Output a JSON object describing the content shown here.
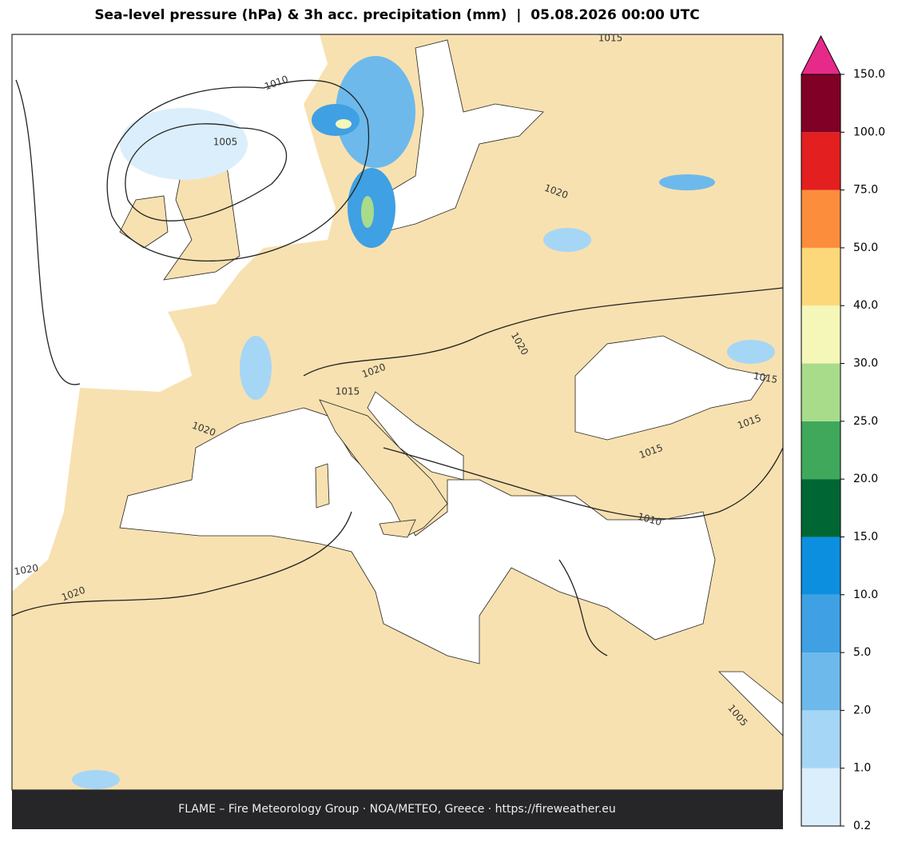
{
  "title": "Sea-level pressure (hPa) & 3h acc. precipitation (mm)  |  05.08.2026 00:00 UTC",
  "colorbar": {
    "ticks": [
      {
        "value": 0.2,
        "label": "0.2"
      },
      {
        "value": 1,
        "label": "1.0"
      },
      {
        "value": 2,
        "label": "2.0"
      },
      {
        "value": 5,
        "label": "5.0"
      },
      {
        "value": 10,
        "label": "10.0"
      },
      {
        "value": 15,
        "label": "15.0"
      },
      {
        "value": 20,
        "label": "20.0"
      },
      {
        "value": 25,
        "label": "25.0"
      },
      {
        "value": 30,
        "label": "30.0"
      },
      {
        "value": 40,
        "label": "40.0"
      },
      {
        "value": 50,
        "label": "50.0"
      },
      {
        "value": 75,
        "label": "75.0"
      },
      {
        "value": 100,
        "label": "100.0"
      },
      {
        "value": 150,
        "label": "150.0"
      }
    ],
    "colors": [
      "#dbeefb",
      "#a6d6f5",
      "#6db9ec",
      "#3fa0e3",
      "#0d8fe0",
      "#006633",
      "#3fa85a",
      "#a8dc8a",
      "#f5f7b9",
      "#fdd87a",
      "#fb8d3d",
      "#e31f1f",
      "#800026"
    ],
    "extend_color": "#e7298a"
  },
  "contour_labels": [
    "1015",
    "1010",
    "1005",
    "1020",
    "1020",
    "1020",
    "1015",
    "1020",
    "1015",
    "1015",
    "1015",
    "1010",
    "1020",
    "1020",
    "1005"
  ],
  "footer": "FLAME – Fire Meteorology Group · NOA/METEO, Greece · https://fireweather.eu"
}
